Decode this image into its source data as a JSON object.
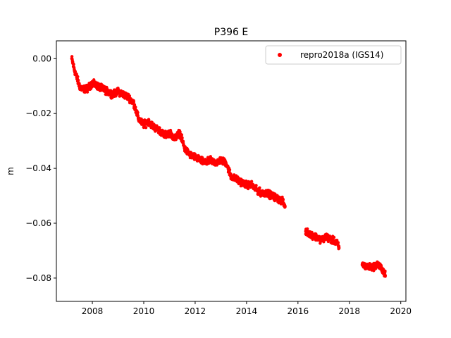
{
  "chart_data": {
    "type": "scatter",
    "title": "P396 E",
    "xlabel": "",
    "ylabel": "m",
    "xlim": [
      2006.6,
      2020.2
    ],
    "ylim": [
      -0.0885,
      0.0065
    ],
    "xticks": [
      2008,
      2010,
      2012,
      2014,
      2016,
      2018,
      2020
    ],
    "xtick_labels": [
      "2008",
      "2010",
      "2012",
      "2014",
      "2016",
      "2018",
      "2020"
    ],
    "yticks": [
      0.0,
      -0.02,
      -0.04,
      -0.06,
      -0.08
    ],
    "ytick_labels": [
      "0.00",
      "−0.02",
      "−0.04",
      "−0.06",
      "−0.08"
    ],
    "grid": false,
    "legend_position": "top-right",
    "series": [
      {
        "name": "repro2018a (IGS14)",
        "color": "#ff0000",
        "marker": "circle",
        "x": [
          2007.2,
          2007.3,
          2007.4,
          2007.5,
          2007.6,
          2007.8,
          2008.0,
          2008.2,
          2008.4,
          2008.6,
          2008.8,
          2009.0,
          2009.2,
          2009.4,
          2009.6,
          2009.8,
          2010.0,
          2010.2,
          2010.4,
          2010.6,
          2010.8,
          2011.0,
          2011.2,
          2011.4,
          2011.6,
          2011.8,
          2012.0,
          2012.2,
          2012.4,
          2012.6,
          2012.8,
          2013.0,
          2013.2,
          2013.4,
          2013.6,
          2013.8,
          2014.0,
          2014.2,
          2014.4,
          2014.6,
          2014.8,
          2015.0,
          2015.2,
          2015.4,
          2015.5,
          2016.3,
          2016.5,
          2016.7,
          2016.9,
          2017.1,
          2017.3,
          2017.5,
          2017.6,
          2018.5,
          2018.7,
          2018.9,
          2019.1,
          2019.3,
          2019.4
        ],
        "y": [
          0.0,
          -0.004,
          -0.007,
          -0.01,
          -0.011,
          -0.011,
          -0.009,
          -0.01,
          -0.011,
          -0.012,
          -0.013,
          -0.012,
          -0.013,
          -0.014,
          -0.016,
          -0.022,
          -0.024,
          -0.023,
          -0.025,
          -0.026,
          -0.028,
          -0.027,
          -0.029,
          -0.027,
          -0.033,
          -0.035,
          -0.036,
          -0.037,
          -0.038,
          -0.037,
          -0.038,
          -0.037,
          -0.038,
          -0.043,
          -0.044,
          -0.045,
          -0.046,
          -0.046,
          -0.048,
          -0.049,
          -0.049,
          -0.05,
          -0.051,
          -0.052,
          -0.054,
          -0.063,
          -0.064,
          -0.065,
          -0.066,
          -0.065,
          -0.066,
          -0.067,
          -0.069,
          -0.075,
          -0.076,
          -0.076,
          -0.075,
          -0.077,
          -0.079
        ]
      }
    ]
  }
}
